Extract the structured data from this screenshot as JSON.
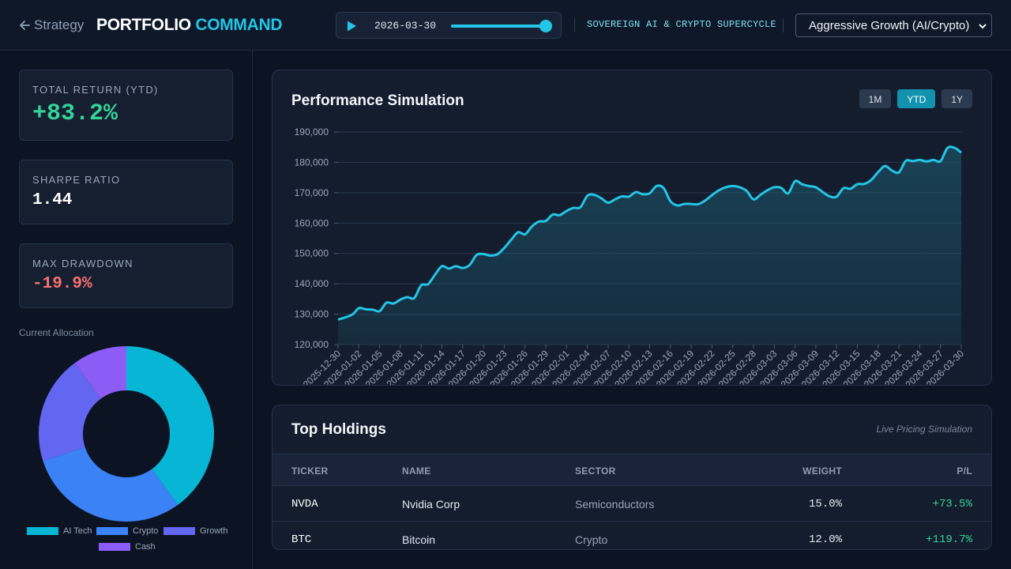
{
  "header": {
    "back_label": "Strategy",
    "brand_primary": "PORTFOLIO",
    "brand_accent": "COMMAND",
    "sim_date": "2026-03-30",
    "sim_progress": 1.0,
    "scenario": "SOVEREIGN AI & CRYPTO SUPERCYCLE",
    "strategy_select": "Aggressive Growth (AI/Crypto)"
  },
  "stats": [
    {
      "label": "TOTAL RETURN (YTD)",
      "value": "+83.2%",
      "color": "#34d399"
    },
    {
      "label": "SHARPE RATIO",
      "value": "1.44",
      "color": "#ffffff"
    },
    {
      "label": "MAX DRAWDOWN",
      "value": "-19.9%",
      "color": "#f87171"
    }
  ],
  "allocation": {
    "title": "Current Allocation",
    "slices": [
      {
        "label": "AI Tech",
        "value": 40,
        "color": "#06b6d4"
      },
      {
        "label": "Crypto",
        "value": 30,
        "color": "#3b82f6"
      },
      {
        "label": "Growth",
        "value": 20,
        "color": "#6366f1"
      },
      {
        "label": "Cash",
        "value": 10,
        "color": "#8b5cf6"
      }
    ]
  },
  "performance": {
    "title": "Performance Simulation",
    "ranges": [
      "1M",
      "YTD",
      "1Y"
    ],
    "active_range": "YTD"
  },
  "chart_data": {
    "type": "area",
    "title": "Performance Simulation",
    "xlabel": "",
    "ylabel": "",
    "ylim": [
      120000,
      190000
    ],
    "yticks": [
      "190,000",
      "180,000",
      "170,000",
      "160,000",
      "150,000",
      "140,000",
      "130,000",
      "120,000"
    ],
    "xticks": [
      "2025-12-30",
      "2026-01-02",
      "2026-01-05",
      "2026-01-08",
      "2026-01-11",
      "2026-01-14",
      "2026-01-17",
      "2026-01-20",
      "2026-01-23",
      "2026-01-26",
      "2026-01-29",
      "2026-02-01",
      "2026-02-04",
      "2026-02-07",
      "2026-02-10",
      "2026-02-13",
      "2026-02-16",
      "2026-02-19",
      "2026-02-22",
      "2026-02-25",
      "2026-02-28",
      "2026-03-03",
      "2026-03-06",
      "2026-03-09",
      "2026-03-12",
      "2026-03-15",
      "2026-03-18",
      "2026-03-21",
      "2026-03-24",
      "2026-03-27",
      "2026-03-30"
    ],
    "grid": true,
    "series": [
      {
        "color": "#22c6e6",
        "points": [
          [
            "2025-12-30",
            128200
          ],
          [
            "2026-01-01",
            129800
          ],
          [
            "2026-01-02",
            132000
          ],
          [
            "2026-01-03",
            131600
          ],
          [
            "2026-01-04",
            131500
          ],
          [
            "2026-01-05",
            131000
          ],
          [
            "2026-01-06",
            133800
          ],
          [
            "2026-01-07",
            133500
          ],
          [
            "2026-01-08",
            134800
          ],
          [
            "2026-01-09",
            135600
          ],
          [
            "2026-01-10",
            135300
          ],
          [
            "2026-01-11",
            139500
          ],
          [
            "2026-01-12",
            139900
          ],
          [
            "2026-01-13",
            143000
          ],
          [
            "2026-01-14",
            145800
          ],
          [
            "2026-01-15",
            145000
          ],
          [
            "2026-01-16",
            145800
          ],
          [
            "2026-01-17",
            145200
          ],
          [
            "2026-01-18",
            146200
          ],
          [
            "2026-01-19",
            149500
          ],
          [
            "2026-01-20",
            149800
          ],
          [
            "2026-01-21",
            149300
          ],
          [
            "2026-01-22",
            149700
          ],
          [
            "2026-01-23",
            151800
          ],
          [
            "2026-01-24",
            154500
          ],
          [
            "2026-01-25",
            157000
          ],
          [
            "2026-01-26",
            156300
          ],
          [
            "2026-01-27",
            158900
          ],
          [
            "2026-01-28",
            160500
          ],
          [
            "2026-01-29",
            160700
          ],
          [
            "2026-01-30",
            162800
          ],
          [
            "2026-01-31",
            162600
          ],
          [
            "2026-02-01",
            164000
          ],
          [
            "2026-02-02",
            165000
          ],
          [
            "2026-02-03",
            165200
          ],
          [
            "2026-02-04",
            169000
          ],
          [
            "2026-02-05",
            169300
          ],
          [
            "2026-02-06",
            168200
          ],
          [
            "2026-02-07",
            166700
          ],
          [
            "2026-02-08",
            167800
          ],
          [
            "2026-02-09",
            168800
          ],
          [
            "2026-02-10",
            168700
          ],
          [
            "2026-02-11",
            170200
          ],
          [
            "2026-02-12",
            169500
          ],
          [
            "2026-02-13",
            169800
          ],
          [
            "2026-02-14",
            172200
          ],
          [
            "2026-02-15",
            171600
          ],
          [
            "2026-02-16",
            167200
          ],
          [
            "2026-02-17",
            165800
          ],
          [
            "2026-02-18",
            166300
          ],
          [
            "2026-02-19",
            166300
          ],
          [
            "2026-02-20",
            166200
          ],
          [
            "2026-02-21",
            167400
          ],
          [
            "2026-02-22",
            169200
          ],
          [
            "2026-02-23",
            170800
          ],
          [
            "2026-02-24",
            171800
          ],
          [
            "2026-02-25",
            172200
          ],
          [
            "2026-02-26",
            171800
          ],
          [
            "2026-02-27",
            170600
          ],
          [
            "2026-02-28",
            167800
          ],
          [
            "2026-03-01",
            169300
          ],
          [
            "2026-03-02",
            170800
          ],
          [
            "2026-03-03",
            171800
          ],
          [
            "2026-03-04",
            171600
          ],
          [
            "2026-03-05",
            169800
          ],
          [
            "2026-03-06",
            173800
          ],
          [
            "2026-03-07",
            172800
          ],
          [
            "2026-03-08",
            172200
          ],
          [
            "2026-03-09",
            171800
          ],
          [
            "2026-03-10",
            170200
          ],
          [
            "2026-03-11",
            168800
          ],
          [
            "2026-03-12",
            168700
          ],
          [
            "2026-03-13",
            171500
          ],
          [
            "2026-03-14",
            171300
          ],
          [
            "2026-03-15",
            172800
          ],
          [
            "2026-03-16",
            172900
          ],
          [
            "2026-03-17",
            174200
          ],
          [
            "2026-03-18",
            176800
          ],
          [
            "2026-03-19",
            178800
          ],
          [
            "2026-03-20",
            177300
          ],
          [
            "2026-03-21",
            176700
          ],
          [
            "2026-03-22",
            180500
          ],
          [
            "2026-03-23",
            180400
          ],
          [
            "2026-03-24",
            180800
          ],
          [
            "2026-03-25",
            180300
          ],
          [
            "2026-03-26",
            180800
          ],
          [
            "2026-03-27",
            180400
          ],
          [
            "2026-03-28",
            184700
          ],
          [
            "2026-03-29",
            184800
          ],
          [
            "2026-03-30",
            183200
          ]
        ]
      }
    ]
  },
  "holdings": {
    "title": "Top Holdings",
    "subtitle": "Live Pricing Simulation",
    "columns": [
      "TICKER",
      "NAME",
      "SECTOR",
      "WEIGHT",
      "P/L"
    ],
    "rows": [
      {
        "ticker": "NVDA",
        "name": "Nvidia Corp",
        "sector": "Semiconductors",
        "weight": "15.0%",
        "pl": "+73.5%"
      },
      {
        "ticker": "BTC",
        "name": "Bitcoin",
        "sector": "Crypto",
        "weight": "12.0%",
        "pl": "+119.7%"
      }
    ]
  }
}
